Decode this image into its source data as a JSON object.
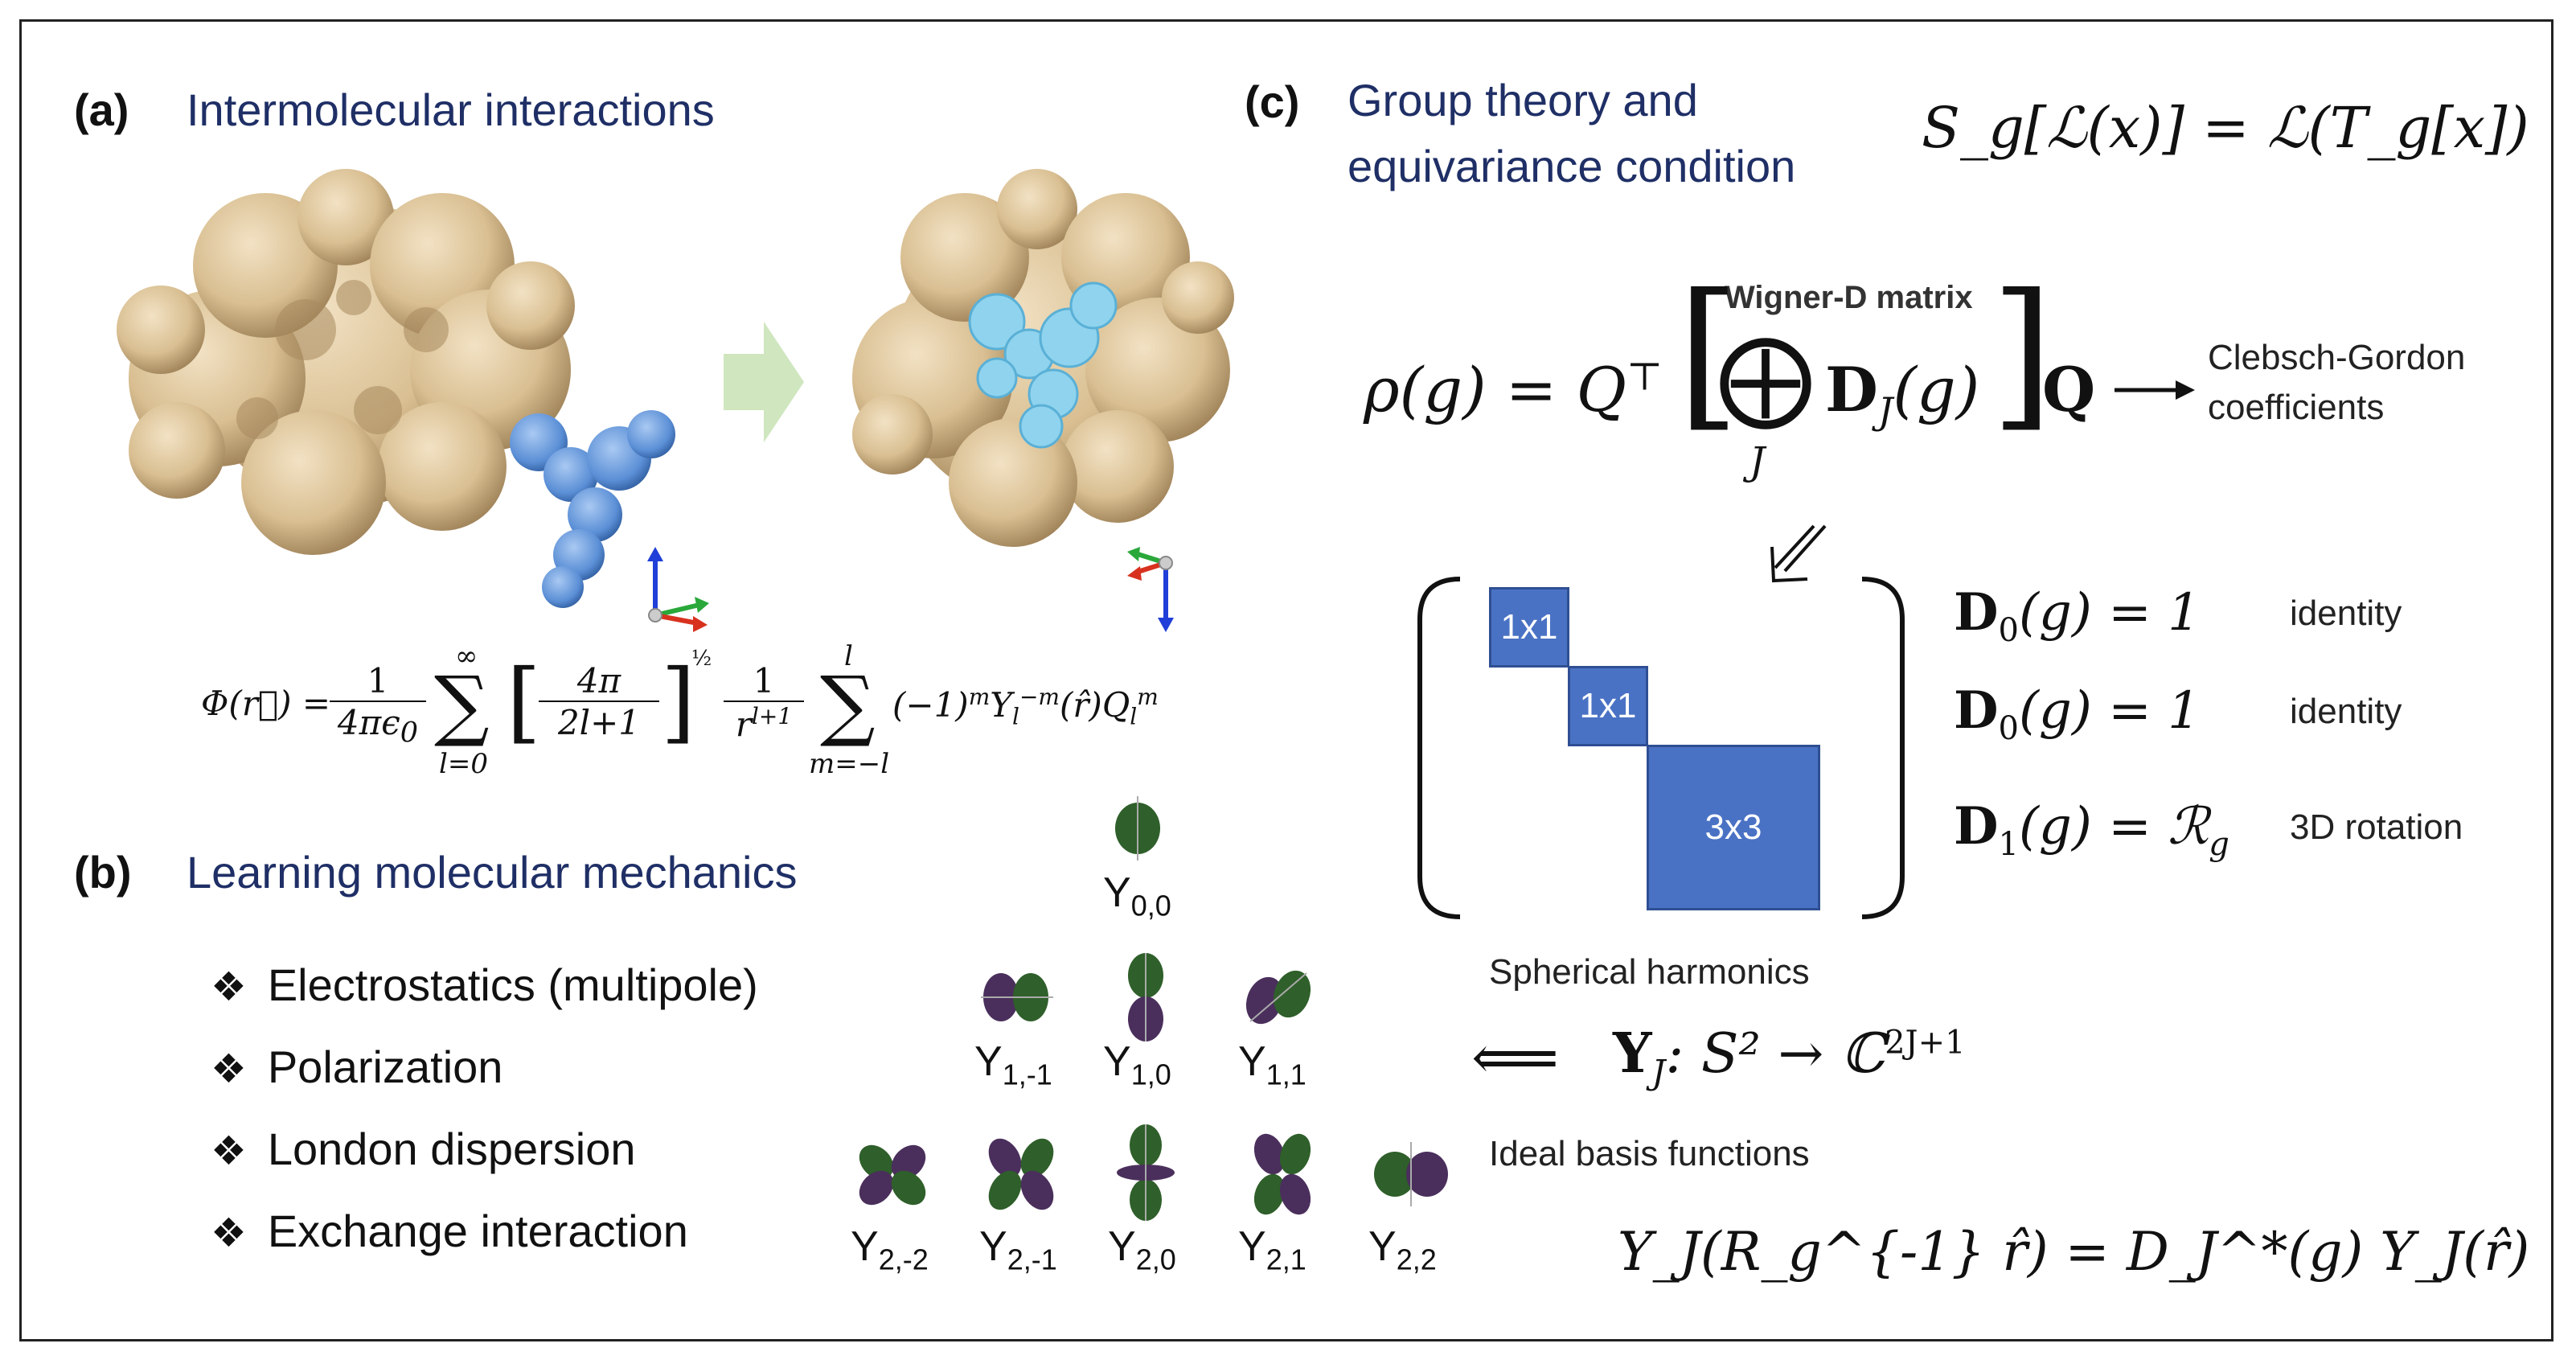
{
  "panel_a": {
    "label": "(a)",
    "title": "Intermolecular interactions",
    "equation": "Φ(r⃗) = 1/(4πϵ₀) Σ_{l=0}^{∞} [4π/(2l+1)]^{1/2} 1/r^{l+1} Σ_{m=−l}^{l} (−1)^m Y_l^{−m}(r̂) Q_l^m"
  },
  "panel_b": {
    "label": "(b)",
    "title": "Learning molecular mechanics",
    "bullets": [
      "Electrostatics (multipole)",
      "Polarization",
      "London dispersion",
      "Exchange interaction"
    ],
    "harmonics": {
      "row0": [
        "0,0"
      ],
      "row1": [
        "1,-1",
        "1,0",
        "1,1"
      ],
      "row2": [
        "2,-2",
        "2,-1",
        "2,0",
        "2,1",
        "2,2"
      ]
    }
  },
  "panel_c": {
    "label": "(c)",
    "title_line1": "Group theory and",
    "title_line2": "equivariance condition",
    "eq_equiv": "S_g[ℒ(x)] = ℒ(T_g[x])",
    "wigner_label": "Wigner-D matrix",
    "rho_lhs": "ρ(g) = Q",
    "rho_sum_index": "J",
    "rho_D": "D",
    "rho_D_arg": "(g)",
    "rho_Q": "Q",
    "cg_line1": "Clebsch-Gordon",
    "cg_line2": "coefficients",
    "blocks": [
      "1x1",
      "1x1",
      "3x3"
    ],
    "block_eqs": [
      {
        "lhs": "D",
        "sub": "0",
        "rhs": "(g) = 1",
        "note": "identity"
      },
      {
        "lhs": "D",
        "sub": "0",
        "rhs": "(g) = 1",
        "note": "identity"
      },
      {
        "lhs": "D",
        "sub": "1",
        "rhs": "(g) = ℛ",
        "rhs_sub": "g",
        "note": "3D rotation"
      }
    ],
    "sph_label": "Spherical harmonics",
    "arrow_left": "⟸",
    "yj_map": "Y",
    "yj_map_rest": ": S² → ℂ",
    "yj_map_sup": "2J+1",
    "ideal_label": "Ideal basis functions",
    "yj_equiv": "Y_J(R_g^{-1} r̂) = D_J^*(g) Y_J(r̂)"
  },
  "colors": {
    "title_blue": "#1f2f66",
    "protein_tan": "#d9bf92",
    "ligand_blue": "#5b8fd6",
    "ligand_cyan": "#8fd3ee",
    "block_blue": "#4a72c4",
    "lobe_green": "#2f5f2a",
    "lobe_purple": "#4a2f5c",
    "arrow_green": "#cfe6bf"
  }
}
